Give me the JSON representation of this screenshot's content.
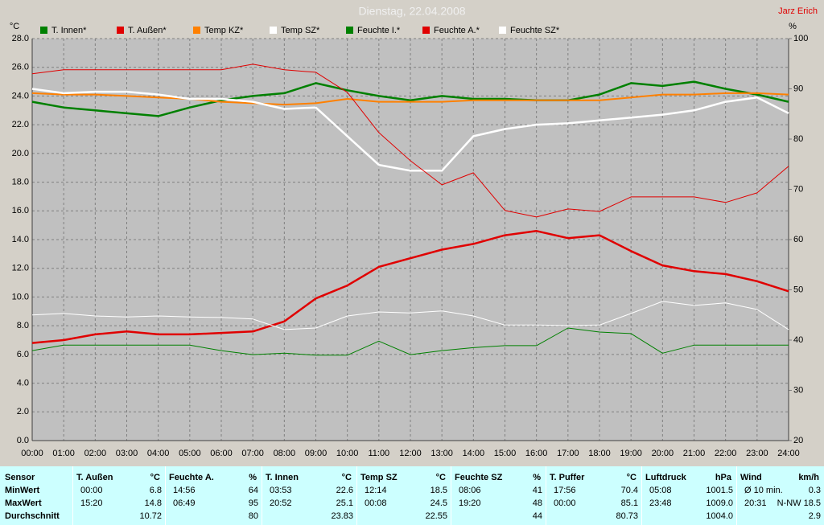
{
  "chart_data": {
    "type": "line",
    "title": "Dienstag, 22.04.2008",
    "author": "Jarz Erich",
    "y_label": "°C",
    "y2_label": "%",
    "x": [
      0,
      1,
      2,
      3,
      4,
      5,
      6,
      7,
      8,
      9,
      10,
      11,
      12,
      13,
      14,
      15,
      16,
      17,
      18,
      19,
      20,
      21,
      22,
      23,
      24
    ],
    "xlim": [
      0,
      24
    ],
    "xticks": [
      {
        "value": 0,
        "label": "00:00"
      },
      {
        "value": 1,
        "label": "01:00"
      },
      {
        "value": 2,
        "label": "02:00"
      },
      {
        "value": 3,
        "label": "03:00"
      },
      {
        "value": 4,
        "label": "04:00"
      },
      {
        "value": 5,
        "label": "05:00"
      },
      {
        "value": 6,
        "label": "06:00"
      },
      {
        "value": 7,
        "label": "07:00"
      },
      {
        "value": 8,
        "label": "08:00"
      },
      {
        "value": 9,
        "label": "09:00"
      },
      {
        "value": 10,
        "label": "10:00"
      },
      {
        "value": 11,
        "label": "11:00"
      },
      {
        "value": 12,
        "label": "12:00"
      },
      {
        "value": 13,
        "label": "13:00"
      },
      {
        "value": 14,
        "label": "14:00"
      },
      {
        "value": 15,
        "label": "15:00"
      },
      {
        "value": 16,
        "label": "16:00"
      },
      {
        "value": 17,
        "label": "17:00"
      },
      {
        "value": 18,
        "label": "18:00"
      },
      {
        "value": 19,
        "label": "19:00"
      },
      {
        "value": 20,
        "label": "20:00"
      },
      {
        "value": 21,
        "label": "21:00"
      },
      {
        "value": 22,
        "label": "22:00"
      },
      {
        "value": 23,
        "label": "23:00"
      },
      {
        "value": 24,
        "label": "24:00"
      }
    ],
    "ylim": [
      0,
      28
    ],
    "yticks": [
      {
        "value": 0,
        "label": "0.0"
      },
      {
        "value": 2,
        "label": "2.0"
      },
      {
        "value": 4,
        "label": "4.0"
      },
      {
        "value": 6,
        "label": "6.0"
      },
      {
        "value": 8,
        "label": "8.0"
      },
      {
        "value": 10,
        "label": "10.0"
      },
      {
        "value": 12,
        "label": "12.0"
      },
      {
        "value": 14,
        "label": "14.0"
      },
      {
        "value": 16,
        "label": "16.0"
      },
      {
        "value": 18,
        "label": "18.0"
      },
      {
        "value": 20,
        "label": "20.0"
      },
      {
        "value": 22,
        "label": "22.0"
      },
      {
        "value": 24,
        "label": "24.0"
      },
      {
        "value": 26,
        "label": "26.0"
      },
      {
        "value": 28,
        "label": "28.0"
      }
    ],
    "y2lim": [
      20,
      100
    ],
    "y2ticks": [
      20,
      30,
      40,
      50,
      60,
      70,
      80,
      90,
      100
    ],
    "grid": true,
    "series": [
      {
        "name": "T. Innen*",
        "color": "#008000",
        "width": 2.5,
        "values": [
          23.6,
          23.2,
          23.0,
          22.8,
          22.6,
          23.2,
          23.7,
          24.0,
          24.2,
          24.9,
          24.4,
          24.0,
          23.7,
          24.0,
          23.8,
          23.8,
          23.7,
          23.7,
          24.1,
          24.9,
          24.7,
          25.0,
          24.5,
          24.1,
          23.6
        ]
      },
      {
        "name": "T. Außen*",
        "color": "#e00000",
        "width": 2.5,
        "values": [
          6.8,
          7.0,
          7.4,
          7.6,
          7.4,
          7.4,
          7.5,
          7.6,
          8.3,
          9.9,
          10.8,
          12.1,
          12.7,
          13.3,
          13.7,
          14.3,
          14.6,
          14.1,
          14.3,
          13.2,
          12.2,
          11.8,
          11.6,
          11.1,
          10.4
        ]
      },
      {
        "name": "Temp KZ*",
        "color": "#ff8000",
        "width": 2,
        "values": [
          24.2,
          24.1,
          24.1,
          24.0,
          23.9,
          23.8,
          23.6,
          23.5,
          23.4,
          23.5,
          23.8,
          23.6,
          23.6,
          23.6,
          23.7,
          23.7,
          23.7,
          23.7,
          23.7,
          23.9,
          24.1,
          24.1,
          24.2,
          24.2,
          24.1
        ]
      },
      {
        "name": "Temp SZ*",
        "color": "#ffffff",
        "width": 2.5,
        "values": [
          24.5,
          24.2,
          24.3,
          24.3,
          24.1,
          23.8,
          23.8,
          23.6,
          23.1,
          23.2,
          21.2,
          19.2,
          18.8,
          18.8,
          21.2,
          21.7,
          22.0,
          22.1,
          22.3,
          22.5,
          22.7,
          23.0,
          23.6,
          23.9,
          22.8
        ]
      },
      {
        "name": "Feuchte I.*",
        "color": "#008000",
        "width": 1,
        "axis": "y2",
        "values": [
          37.9,
          39.0,
          39.0,
          39.0,
          39.0,
          39.0,
          37.9,
          37.1,
          37.4,
          37.0,
          37.0,
          39.8,
          37.1,
          37.9,
          38.5,
          38.9,
          38.9,
          42.4,
          41.6,
          41.3,
          37.4,
          39.0,
          39.0,
          39.0,
          39.0
        ]
      },
      {
        "name": "Feuchte A.*",
        "color": "#e00000",
        "width": 1,
        "axis": "y2",
        "values": [
          93.0,
          93.8,
          93.8,
          93.8,
          93.8,
          93.8,
          93.8,
          94.9,
          93.8,
          93.3,
          89.3,
          81.3,
          75.7,
          70.9,
          73.3,
          65.8,
          64.5,
          66.1,
          65.6,
          68.5,
          68.5,
          68.5,
          67.4,
          69.3,
          74.6
        ]
      },
      {
        "name": "Feuchte SZ*",
        "color": "#ffffff",
        "width": 1,
        "axis": "y2",
        "values": [
          45.0,
          45.3,
          44.8,
          44.6,
          44.8,
          44.6,
          44.5,
          44.2,
          42.1,
          42.4,
          44.8,
          45.6,
          45.4,
          45.8,
          44.8,
          43.0,
          43.0,
          42.9,
          43.0,
          45.3,
          47.7,
          46.9,
          47.4,
          46.1,
          42.1
        ]
      }
    ]
  },
  "table": {
    "row_labels": [
      "Sensor",
      "MinWert",
      "MaxWert",
      "Durchschnitt"
    ],
    "groups": [
      {
        "name": "T. Außen",
        "unit": "°C",
        "rows": [
          [
            "00:00",
            "6.8"
          ],
          [
            "15:20",
            "14.8"
          ],
          [
            null,
            "10.72"
          ]
        ]
      },
      {
        "name": "Feuchte A.",
        "unit": "%",
        "rows": [
          [
            "14:56",
            "64"
          ],
          [
            "06:49",
            "95"
          ],
          [
            null,
            "80"
          ]
        ]
      },
      {
        "name": "T. Innen",
        "unit": "°C",
        "rows": [
          [
            "03:53",
            "22.6"
          ],
          [
            "20:52",
            "25.1"
          ],
          [
            null,
            "23.83"
          ]
        ]
      },
      {
        "name": "Temp SZ",
        "unit": "°C",
        "rows": [
          [
            "12:14",
            "18.5"
          ],
          [
            "00:08",
            "24.5"
          ],
          [
            null,
            "22.55"
          ]
        ]
      },
      {
        "name": "Feuchte SZ",
        "unit": "%",
        "rows": [
          [
            "08:06",
            "41"
          ],
          [
            "19:20",
            "48"
          ],
          [
            null,
            "44"
          ]
        ]
      },
      {
        "name": "T. Puffer",
        "unit": "°C",
        "rows": [
          [
            "17:56",
            "70.4"
          ],
          [
            "00:00",
            "85.1"
          ],
          [
            null,
            "80.73"
          ]
        ]
      },
      {
        "name": "Luftdruck",
        "unit": "hPa",
        "rows": [
          [
            "05:08",
            "1001.5"
          ],
          [
            "23:48",
            "1009.0"
          ],
          [
            null,
            "1004.0"
          ]
        ]
      },
      {
        "name": "Wind",
        "unit": "km/h",
        "rows": [
          [
            "Ø 10 min.",
            "0.3"
          ],
          [
            "20:31",
            "N-NW 18.5"
          ],
          [
            null,
            "2.9"
          ]
        ]
      }
    ]
  }
}
